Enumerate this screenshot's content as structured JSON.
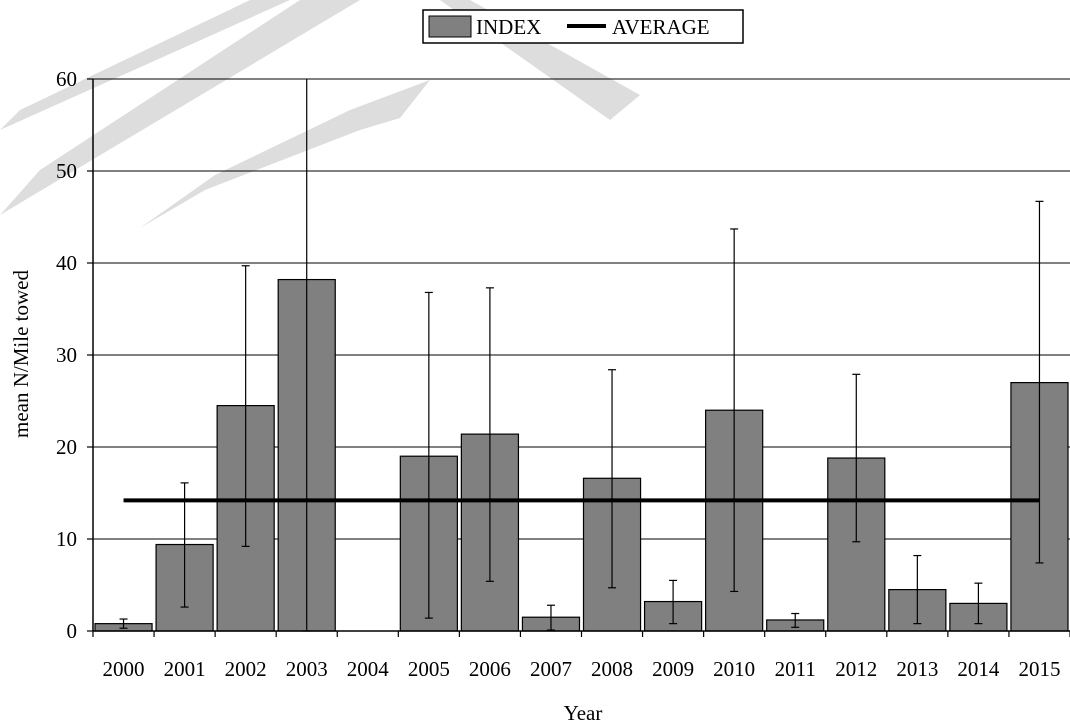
{
  "chart_data": {
    "type": "bar",
    "title": "",
    "xlabel": "Year",
    "ylabel": "mean N/Mile towed",
    "ylim": [
      0,
      60
    ],
    "yticks": [
      0,
      10,
      20,
      30,
      40,
      50,
      60
    ],
    "grid": true,
    "legend_position": "top-center",
    "watermark": "DRAFT",
    "categories": [
      "2000",
      "2001",
      "2002",
      "2003",
      "2004",
      "2005",
      "2006",
      "2007",
      "2008",
      "2009",
      "2010",
      "2011",
      "2012",
      "2013",
      "2014",
      "2015"
    ],
    "series": [
      {
        "name": "INDEX",
        "type": "bar",
        "color": "#808080",
        "values": [
          0.8,
          9.4,
          24.5,
          38.2,
          0,
          19.0,
          21.4,
          1.5,
          16.6,
          3.2,
          24.0,
          1.2,
          18.8,
          4.5,
          3.0,
          27.0
        ],
        "error_low": [
          0.3,
          2.6,
          9.2,
          0,
          null,
          1.4,
          5.4,
          0.1,
          4.7,
          0.8,
          4.3,
          0.4,
          9.7,
          0.8,
          0.8,
          7.4
        ],
        "error_high": [
          1.3,
          16.1,
          39.7,
          60.5,
          null,
          36.8,
          37.3,
          2.8,
          28.4,
          5.5,
          43.7,
          1.9,
          27.9,
          8.2,
          5.2,
          46.7
        ]
      },
      {
        "name": "AVERAGE",
        "type": "line",
        "color": "#000000",
        "value": 14.2
      }
    ]
  }
}
